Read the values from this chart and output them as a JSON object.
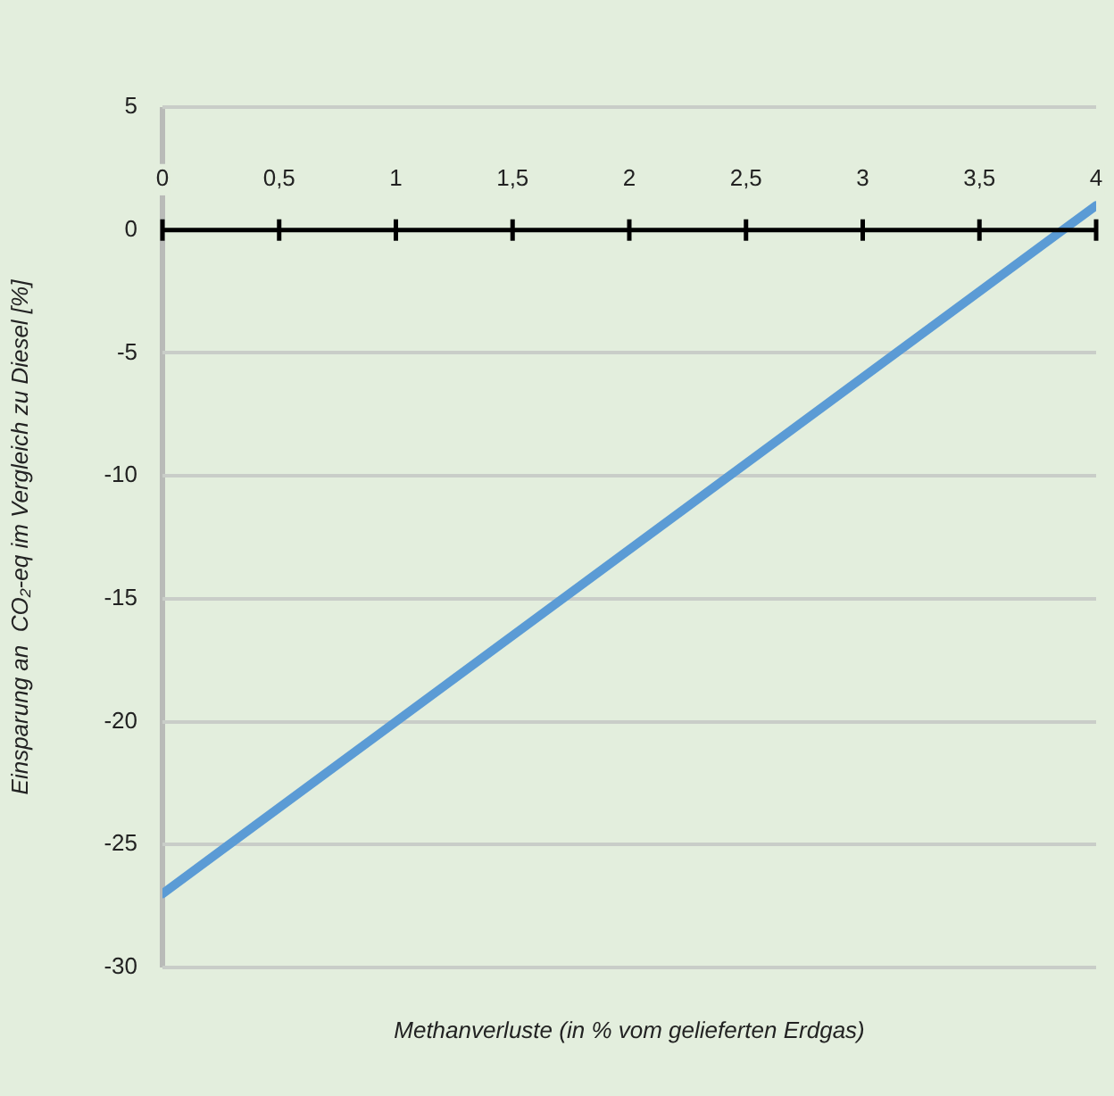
{
  "chart_data": {
    "type": "line",
    "xlabel": "Methanverluste (in % vom gelieferten Erdgas)",
    "ylabel": "Einsparung an  CO₂-eq im Vergleich zu Diesel [%]",
    "x": [
      0,
      4
    ],
    "series": [
      {
        "color": "#5b9bd5",
        "values": [
          -27,
          1
        ]
      }
    ],
    "xlim": [
      0,
      4
    ],
    "xticks": [
      0,
      {
        "value": 0.5,
        "label": "0,5"
      },
      1,
      {
        "value": 1.5,
        "label": "1,5"
      },
      2,
      {
        "value": 2.5,
        "label": "2,5"
      },
      3,
      {
        "value": 3.5,
        "label": "3,5"
      },
      4
    ],
    "ylim": [
      -30,
      5
    ],
    "yticks": [
      -30,
      -25,
      -20,
      -15,
      -10,
      -5,
      0,
      5
    ],
    "grid": "y",
    "legend": false,
    "marker": "none",
    "line_style": "solid"
  }
}
